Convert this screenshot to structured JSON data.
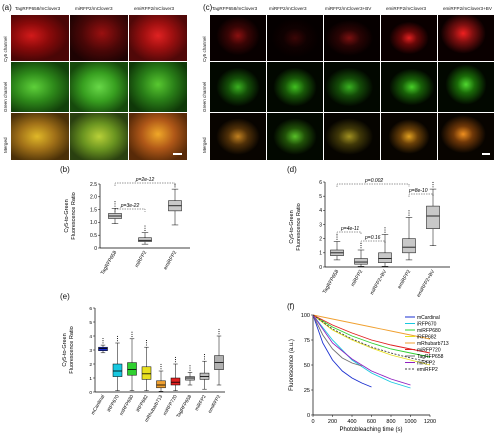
{
  "panels": {
    "a": {
      "label": "(a)",
      "columns": [
        "TagRFP658/mClover3",
        "miRFP2/mClover3",
        "emiRFP2/mClover3"
      ],
      "rows": [
        "Cy5 channel",
        "Green channel",
        "Merged"
      ]
    },
    "b": {
      "label": "(b)"
    },
    "c": {
      "label": "(c)",
      "columns": [
        "TagRFP658/mClover3",
        "miRFP2/mClover3",
        "miRFP2/mClover3+BV",
        "emiRFP2/mClover3",
        "emiRFP2/mClover3+BV"
      ],
      "rows": [
        "Cy5 channel",
        "Green channel",
        "Merged"
      ]
    },
    "d": {
      "label": "(d)"
    },
    "e": {
      "label": "(e)"
    },
    "f": {
      "label": "(f)"
    }
  },
  "colors": {
    "red": "#e8141a",
    "green": "#3ec826",
    "yellow": "#c8a018",
    "black": "#000000"
  },
  "chart_data": [
    {
      "panel": "b",
      "type": "box",
      "ylabel_line1": "Cy5-to-Green",
      "ylabel_line2": "Fluorescence Ratio",
      "ylim": [
        0,
        2.5
      ],
      "yticks": [
        "0",
        "0.5",
        "1.0",
        "1.5",
        "2.0",
        "2.5"
      ],
      "categories": [
        "TagRFP658",
        "miRFP2",
        "emiRFP2"
      ],
      "boxes": [
        {
          "min": 0.95,
          "q1": 1.15,
          "median": 1.25,
          "q3": 1.35,
          "max": 1.55
        },
        {
          "min": 0.15,
          "q1": 0.25,
          "median": 0.3,
          "q3": 0.4,
          "max": 0.6
        },
        {
          "min": 0.9,
          "q1": 1.45,
          "median": 1.65,
          "q3": 1.85,
          "max": 2.3
        }
      ],
      "annotations": [
        "p=3e-22",
        "p=2e-12"
      ]
    },
    {
      "panel": "d",
      "type": "box",
      "ylabel_line1": "Cy5-to-Green",
      "ylabel_line2": "Fluorescence Ratio",
      "ylim": [
        0,
        6
      ],
      "yticks": [
        "0",
        "1",
        "2",
        "3",
        "4",
        "5",
        "6"
      ],
      "categories": [
        "TagRFP658",
        "miRFP2",
        "miRFP2+BV",
        "emiRFP2",
        "emiRFP2+BV"
      ],
      "boxes": [
        {
          "min": 0.5,
          "q1": 0.8,
          "median": 1.0,
          "q3": 1.2,
          "max": 1.8
        },
        {
          "min": 0.05,
          "q1": 0.2,
          "median": 0.35,
          "q3": 0.6,
          "max": 1.2
        },
        {
          "min": 0.05,
          "q1": 0.3,
          "median": 0.6,
          "q3": 1.0,
          "max": 2.3
        },
        {
          "min": 0.5,
          "q1": 1.0,
          "median": 1.4,
          "q3": 2.0,
          "max": 3.5
        },
        {
          "min": 1.5,
          "q1": 2.7,
          "median": 3.6,
          "q3": 4.3,
          "max": 5.5
        }
      ],
      "annotations": [
        "p=4e-11",
        "p=0.16",
        "p=0.002",
        "p=8e-10"
      ]
    },
    {
      "panel": "e",
      "type": "box",
      "ylabel_line1": "Cy5-to-Green",
      "ylabel_line2": "Fluorescence Ratio",
      "ylim": [
        0,
        6
      ],
      "yticks": [
        "0",
        "1",
        "2",
        "3",
        "4",
        "5",
        "6"
      ],
      "categories": [
        "mCardinal",
        "iRFP670",
        "miRFP680",
        "iRFP682",
        "mRhubarb713",
        "miRFP720",
        "TagRFP658",
        "miRFP2",
        "emiRFP2"
      ],
      "colors": [
        "#1a2fd0",
        "#18c8e0",
        "#30d030",
        "#e8e020",
        "#f0a030",
        "#e02020",
        "#c0c0c0",
        "#c0c0c0",
        "#b0b0b0"
      ],
      "boxes": [
        {
          "min": 2.8,
          "q1": 2.95,
          "median": 3.1,
          "q3": 3.2,
          "max": 3.35
        },
        {
          "min": 0.1,
          "q1": 1.1,
          "median": 1.5,
          "q3": 2.0,
          "max": 3.5
        },
        {
          "min": 0.1,
          "q1": 1.2,
          "median": 1.6,
          "q3": 2.1,
          "max": 3.8
        },
        {
          "min": 0.1,
          "q1": 0.9,
          "median": 1.3,
          "q3": 1.8,
          "max": 3.2
        },
        {
          "min": 0.05,
          "q1": 0.3,
          "median": 0.5,
          "q3": 0.8,
          "max": 1.5
        },
        {
          "min": 0.1,
          "q1": 0.5,
          "median": 0.7,
          "q3": 1.0,
          "max": 2.0
        },
        {
          "min": 0.5,
          "q1": 0.85,
          "median": 1.0,
          "q3": 1.1,
          "max": 1.4
        },
        {
          "min": 0.2,
          "q1": 0.9,
          "median": 1.1,
          "q3": 1.35,
          "max": 2.2
        },
        {
          "min": 0.5,
          "q1": 1.6,
          "median": 2.1,
          "q3": 2.6,
          "max": 4.0
        }
      ]
    },
    {
      "panel": "f",
      "type": "line",
      "xlabel": "Photobleaching time (s)",
      "ylabel": "Fluorescence (a.u.)",
      "xlim": [
        0,
        1200
      ],
      "ylim": [
        0,
        100
      ],
      "xticks": [
        "0",
        "200",
        "400",
        "600",
        "800",
        "1000",
        "1200"
      ],
      "yticks": [
        "0",
        "25",
        "50",
        "75",
        "100"
      ],
      "series": [
        {
          "name": "mCardinal",
          "color": "#1a2fd0",
          "dash": false,
          "x": [
            0,
            100,
            200,
            300,
            400,
            500,
            600
          ],
          "y": [
            100,
            72,
            55,
            44,
            37,
            32,
            28
          ]
        },
        {
          "name": "iRFP670",
          "color": "#18c8e0",
          "dash": false,
          "x": [
            0,
            200,
            400,
            600,
            800,
            1000
          ],
          "y": [
            100,
            75,
            55,
            42,
            33,
            27
          ]
        },
        {
          "name": "miRFP680",
          "color": "#30d030",
          "dash": false,
          "x": [
            0,
            200,
            400,
            600,
            800,
            1000,
            1200
          ],
          "y": [
            100,
            88,
            79,
            72,
            66,
            62,
            58
          ]
        },
        {
          "name": "iRFP682",
          "color": "#e8e020",
          "dash": false,
          "x": [
            0,
            200,
            400,
            600,
            800,
            1000,
            1200
          ],
          "y": [
            100,
            85,
            75,
            67,
            60,
            55,
            50
          ]
        },
        {
          "name": "mRhubarb713",
          "color": "#f0a030",
          "dash": false,
          "x": [
            0,
            200,
            400,
            600,
            800,
            1000,
            1200
          ],
          "y": [
            100,
            96,
            92,
            88,
            84,
            80,
            76
          ]
        },
        {
          "name": "miRFP720",
          "color": "#e02020",
          "dash": false,
          "x": [
            0,
            200,
            400,
            600,
            800,
            1000,
            1200
          ],
          "y": [
            100,
            90,
            82,
            75,
            70,
            66,
            62
          ]
        },
        {
          "name": "TagRFP658",
          "color": "#707070",
          "dash": false,
          "x": [
            0,
            100,
            200,
            300,
            400,
            500
          ],
          "y": [
            100,
            80,
            66,
            57,
            52,
            49
          ]
        },
        {
          "name": "miRFP2",
          "color": "#9020c0",
          "dash": false,
          "x": [
            0,
            200,
            400,
            600,
            800,
            1000
          ],
          "y": [
            100,
            72,
            56,
            44,
            36,
            30
          ]
        },
        {
          "name": "emiRFP2",
          "color": "#404040",
          "dash": true,
          "x": [
            0,
            200,
            400,
            600,
            800,
            1000,
            1200
          ],
          "y": [
            100,
            86,
            76,
            68,
            62,
            57,
            53
          ]
        }
      ]
    }
  ]
}
